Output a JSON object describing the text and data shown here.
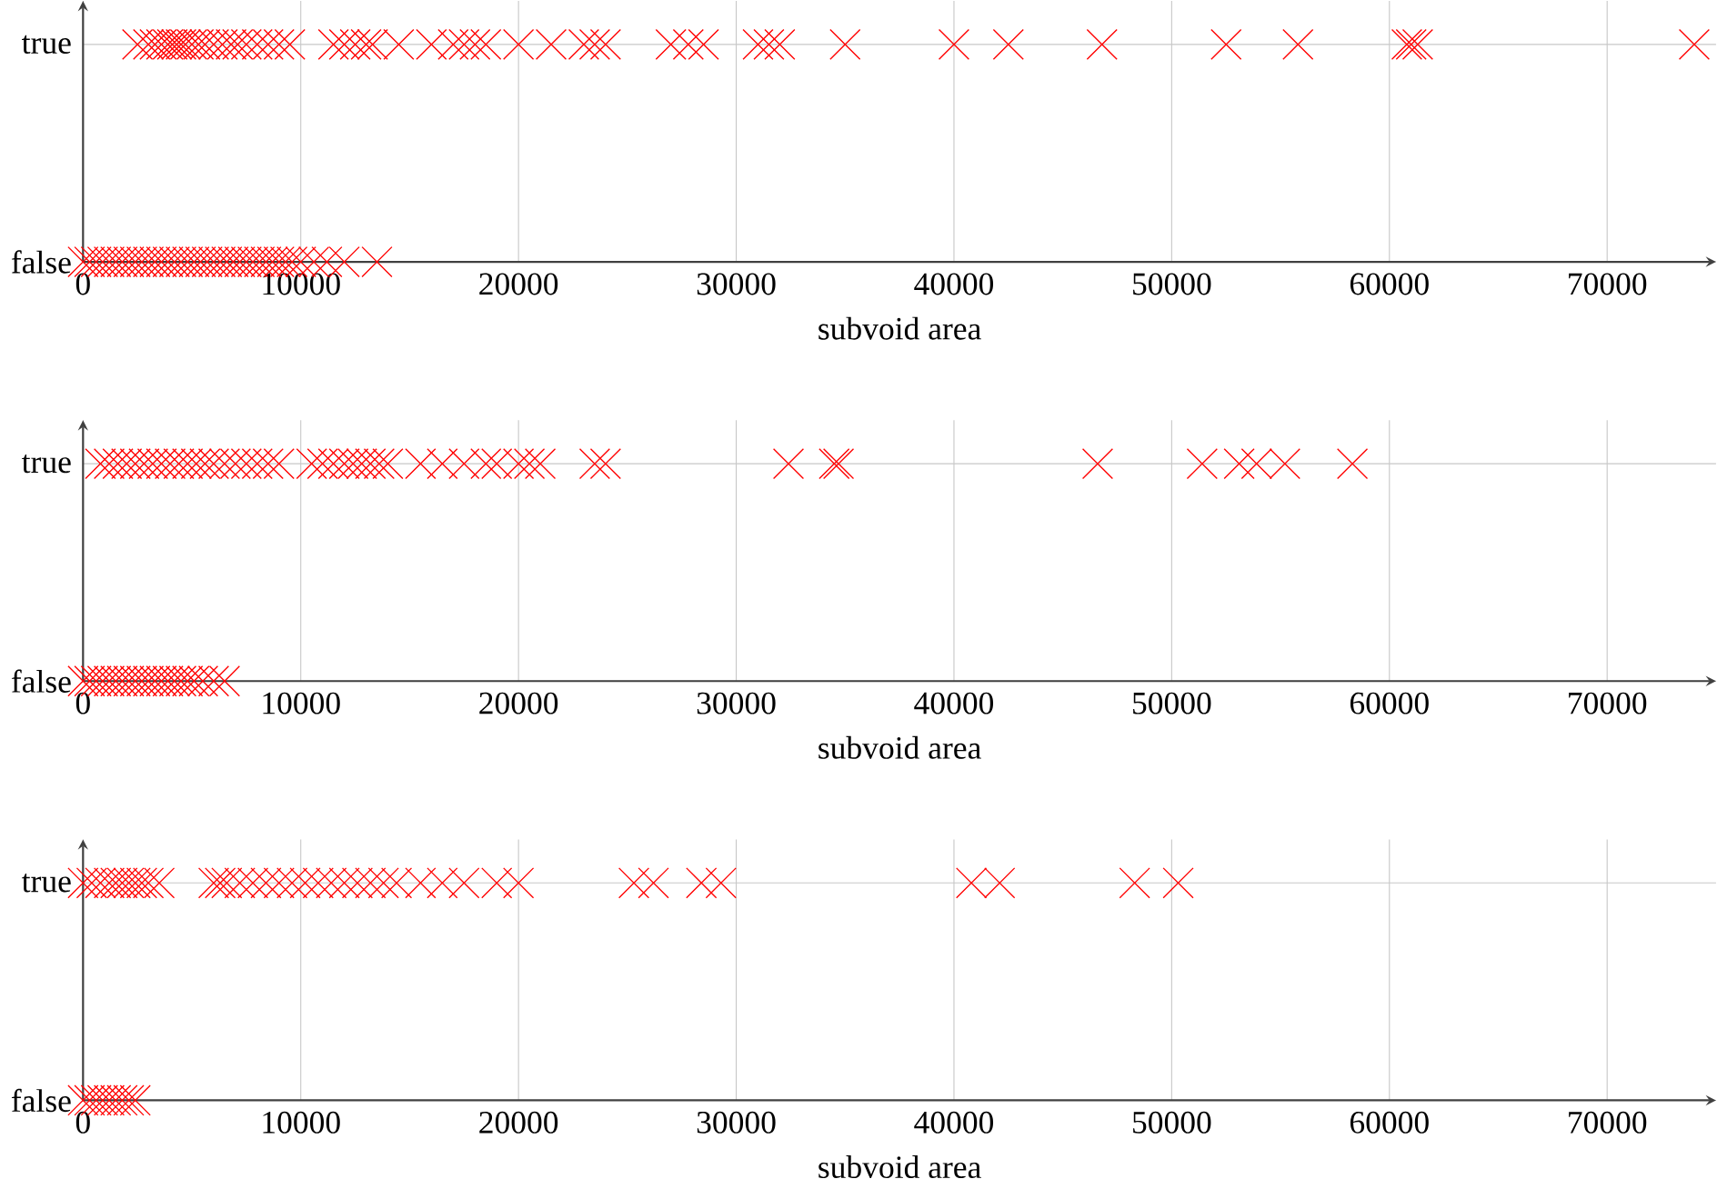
{
  "chart_data": [
    {
      "type": "scatter",
      "orientation": "horizontal",
      "xlabel": "subvoid area",
      "xlim": [
        0,
        75000
      ],
      "xticks": [
        0,
        10000,
        20000,
        30000,
        40000,
        50000,
        60000,
        70000
      ],
      "categories": [
        "true",
        "false"
      ],
      "grid": true,
      "marker": "cross",
      "color": "#ff0000",
      "series": [
        {
          "values": [
            2500,
            3000,
            3300,
            3600,
            3900,
            4100,
            4300,
            4500,
            4700,
            5000,
            5300,
            5600,
            6000,
            6400,
            6800,
            7100,
            7500,
            8000,
            8500,
            9000,
            9500,
            11500,
            12000,
            12500,
            13000,
            13300,
            14500,
            16000,
            17000,
            17500,
            18000,
            18500,
            20000,
            21500,
            23000,
            23500,
            24000,
            27000,
            27800,
            28500,
            31000,
            31500,
            32000,
            35000,
            40000,
            42500,
            46800,
            52500,
            55800,
            60800,
            61000,
            61300,
            74000
          ],
          "x": [
            "true",
            "true",
            "true",
            "true",
            "true",
            "true",
            "true",
            "true",
            "true",
            "true",
            "true",
            "true",
            "true",
            "true",
            "true",
            "true",
            "true",
            "true",
            "true",
            "true",
            "true",
            "true",
            "true",
            "true",
            "true",
            "true",
            "true",
            "true",
            "true",
            "true",
            "true",
            "true",
            "true",
            "true",
            "true",
            "true",
            "true",
            "true",
            "true",
            "true",
            "true",
            "true",
            "true",
            "true",
            "true",
            "true",
            "true",
            "true",
            "true",
            "true",
            "true",
            "true",
            "true"
          ]
        },
        {
          "values": [
            0,
            300,
            600,
            900,
            1200,
            1500,
            1800,
            2100,
            2400,
            2700,
            3000,
            3300,
            3600,
            3900,
            4200,
            4500,
            4800,
            5100,
            5400,
            5700,
            6000,
            6300,
            6600,
            6900,
            7200,
            7500,
            7800,
            8100,
            8400,
            8700,
            9000,
            9300,
            9600,
            10000,
            10600,
            11200,
            12000,
            13500
          ],
          "x": [
            "false",
            "false",
            "false",
            "false",
            "false",
            "false",
            "false",
            "false",
            "false",
            "false",
            "false",
            "false",
            "false",
            "false",
            "false",
            "false",
            "false",
            "false",
            "false",
            "false",
            "false",
            "false",
            "false",
            "false",
            "false",
            "false",
            "false",
            "false",
            "false",
            "false",
            "false",
            "false",
            "false",
            "false",
            "false",
            "false",
            "false",
            "false"
          ]
        }
      ]
    },
    {
      "type": "scatter",
      "orientation": "horizontal",
      "xlabel": "subvoid area",
      "xlim": [
        0,
        75000
      ],
      "xticks": [
        0,
        10000,
        20000,
        30000,
        40000,
        50000,
        60000,
        70000
      ],
      "categories": [
        "true",
        "false"
      ],
      "grid": true,
      "marker": "cross",
      "color": "#ff0000",
      "series": [
        {
          "values": [
            800,
            1200,
            1600,
            2000,
            2400,
            2800,
            3200,
            3600,
            4000,
            4400,
            4800,
            5200,
            5600,
            6000,
            6500,
            7000,
            7500,
            8000,
            8500,
            9000,
            10500,
            11000,
            11500,
            12000,
            12400,
            12800,
            13200,
            13600,
            14000,
            15500,
            16500,
            17500,
            18500,
            19000,
            20000,
            20500,
            21000,
            23500,
            24000,
            32400,
            34500,
            34700,
            46600,
            51400,
            53100,
            53900,
            55200,
            58300
          ],
          "x": [
            "true",
            "true",
            "true",
            "true",
            "true",
            "true",
            "true",
            "true",
            "true",
            "true",
            "true",
            "true",
            "true",
            "true",
            "true",
            "true",
            "true",
            "true",
            "true",
            "true",
            "true",
            "true",
            "true",
            "true",
            "true",
            "true",
            "true",
            "true",
            "true",
            "true",
            "true",
            "true",
            "true",
            "true",
            "true",
            "true",
            "true",
            "true",
            "true",
            "true",
            "true",
            "true",
            "true",
            "true",
            "true",
            "true",
            "true",
            "true"
          ]
        },
        {
          "values": [
            0,
            300,
            600,
            900,
            1200,
            1500,
            1800,
            2100,
            2400,
            2700,
            3000,
            3300,
            3600,
            3900,
            4200,
            4500,
            4800,
            5100,
            5500,
            6000,
            6500
          ],
          "x": [
            "false",
            "false",
            "false",
            "false",
            "false",
            "false",
            "false",
            "false",
            "false",
            "false",
            "false",
            "false",
            "false",
            "false",
            "false",
            "false",
            "false",
            "false",
            "false",
            "false",
            "false"
          ]
        }
      ]
    },
    {
      "type": "scatter",
      "orientation": "horizontal",
      "xlabel": "subvoid area",
      "xlim": [
        0,
        75000
      ],
      "xticks": [
        0,
        10000,
        20000,
        30000,
        40000,
        50000,
        60000,
        70000
      ],
      "categories": [
        "true",
        "false"
      ],
      "grid": true,
      "marker": "cross",
      "color": "#ff0000",
      "series": [
        {
          "values": [
            0,
            400,
            800,
            1200,
            1500,
            1800,
            2100,
            2400,
            2700,
            3000,
            3500,
            6000,
            6300,
            6600,
            7200,
            7800,
            8400,
            9000,
            9600,
            10200,
            10800,
            11400,
            12000,
            12600,
            13200,
            13800,
            14400,
            15500,
            16500,
            17500,
            19000,
            20000,
            25300,
            26200,
            28400,
            29300,
            40800,
            42100,
            48300,
            50300
          ],
          "x": [
            "true",
            "true",
            "true",
            "true",
            "true",
            "true",
            "true",
            "true",
            "true",
            "true",
            "true",
            "true",
            "true",
            "true",
            "true",
            "true",
            "true",
            "true",
            "true",
            "true",
            "true",
            "true",
            "true",
            "true",
            "true",
            "true",
            "true",
            "true",
            "true",
            "true",
            "true",
            "true",
            "true",
            "true",
            "true",
            "true",
            "true",
            "true",
            "true",
            "true"
          ]
        },
        {
          "values": [
            0,
            300,
            600,
            900,
            1200,
            1500,
            1800,
            2100,
            2400
          ],
          "x": [
            "false",
            "false",
            "false",
            "false",
            "false",
            "false",
            "false",
            "false",
            "false"
          ]
        }
      ]
    }
  ]
}
